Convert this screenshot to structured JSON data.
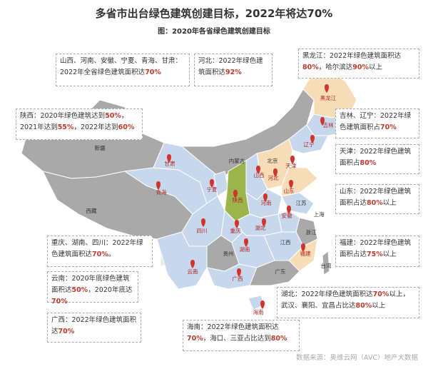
{
  "title": "多省市出台绿色建筑创建目标，2022年将达70%",
  "subtitle": "图：2020年各省绿色建筑创建目标",
  "source": "数据来源：奥维云网（AVC）地产大数据",
  "colors": {
    "highlight_text": "#c0392b",
    "box_border": "#a9a9a9",
    "region_default": "#c7d8ec",
    "region_gray": "#a9a9a9",
    "region_orange": "#f7ddb7",
    "region_green": "#9bb44c",
    "pin": "#d0342c"
  },
  "annotations": [
    {
      "id": "shanxi-group",
      "parts": [
        [
          "山西、河南、安徽、宁夏、青海、甘肃：2022年全省绿色建筑面积达",
          ""
        ],
        [
          "70%",
          "hl"
        ]
      ]
    },
    {
      "id": "hebei",
      "parts": [
        [
          "河北：2022年绿色建筑面积达",
          ""
        ],
        [
          "92%",
          "hl"
        ]
      ]
    },
    {
      "id": "heilongjiang",
      "parts": [
        [
          "黑龙江：2022年绿色建筑面积达",
          ""
        ],
        [
          "80%",
          "hl"
        ],
        [
          "，哈尔滨达",
          ""
        ],
        [
          "90%",
          "hl"
        ],
        [
          "以上",
          ""
        ]
      ]
    },
    {
      "id": "shaanxi",
      "parts": [
        [
          "陕西：2020年绿色建筑达到",
          ""
        ],
        [
          "50%",
          "hl"
        ],
        [
          "，2021年达到",
          ""
        ],
        [
          "55%",
          "hl"
        ],
        [
          "，2022年达到",
          ""
        ],
        [
          "60%",
          "hl"
        ]
      ]
    },
    {
      "id": "jilin",
      "parts": [
        [
          "吉林、辽宁：2022年绿色建筑面积占",
          ""
        ],
        [
          "70%",
          "hl"
        ]
      ]
    },
    {
      "id": "tianjin",
      "parts": [
        [
          "天津：2022年绿色建筑面积占",
          ""
        ],
        [
          "80%",
          "hl"
        ]
      ]
    },
    {
      "id": "shandong",
      "parts": [
        [
          "山东：2022年绿色建筑面积占达",
          ""
        ],
        [
          "80%",
          "hl"
        ],
        [
          "以上",
          ""
        ]
      ]
    },
    {
      "id": "chongqing",
      "parts": [
        [
          "重庆、湖南、四川：2022年绿色建筑面积达",
          ""
        ],
        [
          "70%",
          "hl"
        ],
        [
          "。",
          ""
        ]
      ]
    },
    {
      "id": "fujian",
      "parts": [
        [
          "福建：2022年绿色建筑面积占达",
          ""
        ],
        [
          "75%",
          "hl"
        ],
        [
          "以上",
          ""
        ]
      ]
    },
    {
      "id": "yunnan",
      "parts": [
        [
          "云南：2020年底绿色建筑面积达",
          ""
        ],
        [
          "50%",
          "hl"
        ],
        [
          "，2020年底达",
          ""
        ],
        [
          "70%",
          "hl"
        ]
      ]
    },
    {
      "id": "hubei",
      "parts": [
        [
          "湖北：2022年绿色建筑面积达",
          ""
        ],
        [
          "70%",
          "hl"
        ],
        [
          "以上，武汉、襄阳、宜昌占比达",
          ""
        ],
        [
          "80%",
          "hl"
        ],
        [
          "以上",
          ""
        ]
      ]
    },
    {
      "id": "guangxi",
      "parts": [
        [
          "广西：2022年绿色建筑面积达",
          ""
        ],
        [
          "70%",
          "hl"
        ]
      ]
    },
    {
      "id": "hainan",
      "parts": [
        [
          "海南：2022年绿色建筑面积达",
          ""
        ],
        [
          "70%",
          "hl"
        ],
        [
          "，海口、三亚占比达到",
          ""
        ],
        [
          "80%",
          "hl"
        ]
      ]
    }
  ],
  "provinces": [
    {
      "name": "黑龙江",
      "color": "red"
    },
    {
      "name": "吉林",
      "color": "red"
    },
    {
      "name": "辽宁",
      "color": "red"
    },
    {
      "name": "内蒙古",
      "color": "dark"
    },
    {
      "name": "北京",
      "color": "dark"
    },
    {
      "name": "天津",
      "color": "red"
    },
    {
      "name": "河北",
      "color": "red"
    },
    {
      "name": "山西",
      "color": "red"
    },
    {
      "name": "山东",
      "color": "red"
    },
    {
      "name": "新疆",
      "color": "dark"
    },
    {
      "name": "甘肃",
      "color": "red"
    },
    {
      "name": "宁夏",
      "color": "red"
    },
    {
      "name": "青海",
      "color": "red"
    },
    {
      "name": "陕西",
      "color": "red"
    },
    {
      "name": "河南",
      "color": "red"
    },
    {
      "name": "江苏",
      "color": "dark"
    },
    {
      "name": "安徽",
      "color": "red"
    },
    {
      "name": "上海",
      "color": "dark"
    },
    {
      "name": "西藏",
      "color": "dark"
    },
    {
      "name": "四川",
      "color": "red"
    },
    {
      "name": "重庆",
      "color": "red"
    },
    {
      "name": "湖北",
      "color": "red"
    },
    {
      "name": "浙江",
      "color": "dark"
    },
    {
      "name": "江西",
      "color": "dark"
    },
    {
      "name": "湖南",
      "color": "red"
    },
    {
      "name": "福建",
      "color": "red"
    },
    {
      "name": "贵州",
      "color": "dark"
    },
    {
      "name": "台湾",
      "color": "dark"
    },
    {
      "name": "云南",
      "color": "red"
    },
    {
      "name": "广西",
      "color": "red"
    },
    {
      "name": "广东",
      "color": "dark"
    },
    {
      "name": "海南",
      "color": "red"
    }
  ]
}
